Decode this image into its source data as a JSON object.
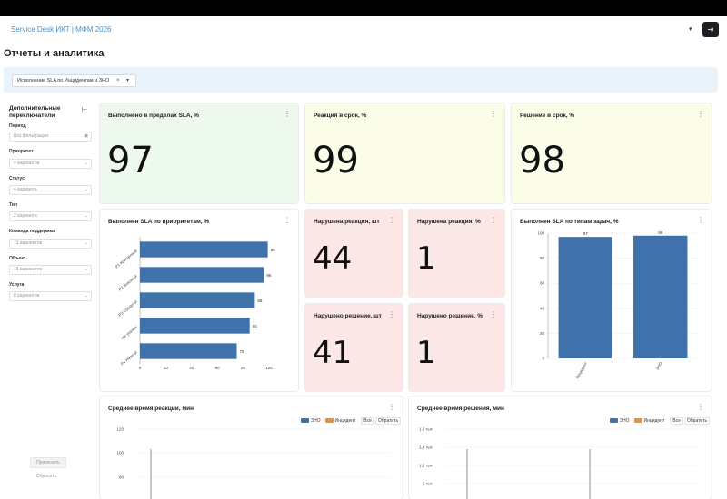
{
  "header": {
    "app_title": "Service Desk ИКТ | МФМ 2026",
    "caret": "▾",
    "exit_icon": "exit-icon"
  },
  "page": {
    "title": "Отчеты и аналитика"
  },
  "filter_bar": {
    "chip_label": "Исполнение SLA по Инцидентам и ЗНО",
    "chip_clear": "×",
    "chip_caret": "▾"
  },
  "sidebar": {
    "title": "Дополнительные переключатели",
    "collapse_icon": "⊢",
    "filters": [
      {
        "label": "Период",
        "value": "Без фильтрации"
      },
      {
        "label": "Приоритет",
        "value": "4 вариантов"
      },
      {
        "label": "Статус",
        "value": "4 варианта"
      },
      {
        "label": "Тип",
        "value": "2 варианта"
      },
      {
        "label": "Команда поддержки",
        "value": "13 вариантов"
      },
      {
        "label": "Объект",
        "value": "16 вариантов"
      },
      {
        "label": "Услуга",
        "value": "8 вариантов"
      }
    ],
    "apply_label": "Применить",
    "reset_label": "Сбросить"
  },
  "kpis": {
    "sla_met": {
      "title": "Выполнено в пределах SLA, %",
      "value": "97"
    },
    "reaction_ontime": {
      "title": "Реакция в срок, %",
      "value": "99"
    },
    "resolution_ontime": {
      "title": "Решение в срок, %",
      "value": "98"
    },
    "reaction_breach_count": {
      "title": "Нарушена реакция, шт",
      "value": "44"
    },
    "reaction_breach_pct": {
      "title": "Нарушена реакция, %",
      "value": "1"
    },
    "resolution_breach_count": {
      "title": "Нарушено решение, шт",
      "value": "41"
    },
    "resolution_breach_pct": {
      "title": "Нарушено решение, %",
      "value": "1"
    }
  },
  "colors": {
    "bar": "#3f72ab",
    "orange": "#e8913a",
    "green_bg": "#edf9ec",
    "yellow_bg": "#fbfde9",
    "red_bg": "#fbe7e5"
  },
  "chart_data": [
    {
      "type": "bar",
      "orientation": "horizontal",
      "title": "Выполнен SLA по приоритетам, %",
      "categories": [
        "P1 Критичный",
        "P2 Высокий",
        "P3 Средний",
        "Не указан",
        "P4 Низкий"
      ],
      "values": [
        99,
        96,
        89,
        85,
        75
      ],
      "xlim": [
        0,
        100
      ],
      "xticks": [
        "0",
        "20",
        "40",
        "60",
        "80",
        "100"
      ]
    },
    {
      "type": "bar",
      "title": "Выполнен SLA по типам задач, %",
      "categories": [
        "Инцидент",
        "ЗНО"
      ],
      "values": [
        97,
        98
      ],
      "ylim": [
        0,
        100
      ],
      "yticks": [
        "0",
        "20",
        "40",
        "60",
        "80",
        "100"
      ]
    },
    {
      "type": "bar",
      "title": "Среднее время реакции, мин",
      "legend": [
        "ЗНО",
        "Инцидент"
      ],
      "legend_buttons": [
        "Все",
        "Обратить"
      ],
      "yticks": [
        "80",
        "100",
        "120"
      ]
    },
    {
      "type": "bar",
      "title": "Среднее время решения, мин",
      "legend": [
        "ЗНО",
        "Инцидент"
      ],
      "legend_buttons": [
        "Все",
        "Обратить"
      ],
      "yticks": [
        "1 тыс",
        "1,2 тыс",
        "1,4 тыс",
        "1,6 тыс"
      ]
    }
  ]
}
